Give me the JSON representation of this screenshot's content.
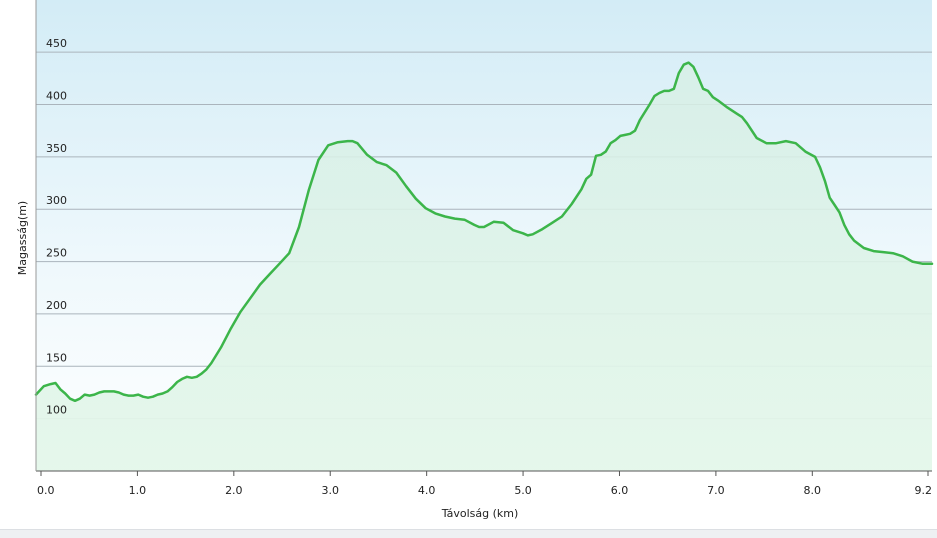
{
  "chart_data": {
    "type": "area",
    "xlabel": "Távolság  (km)",
    "ylabel": "Magasság(m)",
    "xlim": [
      0,
      9.2
    ],
    "ylim": [
      50,
      500
    ],
    "xticks": [
      0.0,
      1.0,
      2.0,
      3.0,
      4.0,
      5.0,
      6.0,
      7.0,
      8.0,
      9.2
    ],
    "xtick_labels": [
      "0.0",
      "1.0",
      "2.0",
      "3.0",
      "4.0",
      "5.0",
      "6.0",
      "7.0",
      "8.0",
      "9.2"
    ],
    "yticks": [
      100,
      150,
      200,
      250,
      300,
      350,
      400,
      450
    ],
    "ytick_labels": [
      "100",
      "150",
      "200",
      "250",
      "300",
      "350",
      "400",
      "450"
    ],
    "grid": true,
    "line_color": "#3cb54a",
    "fill_top_color": "#d6eaf4",
    "fill_bottom_color": "#e6f7ec",
    "series": [
      {
        "x": [
          0.0,
          0.08,
          0.15,
          0.2,
          0.25,
          0.3,
          0.35,
          0.4,
          0.45,
          0.5,
          0.55,
          0.6,
          0.65,
          0.7,
          0.75,
          0.8,
          0.85,
          0.9,
          0.95,
          1.0,
          1.05,
          1.1,
          1.15,
          1.2,
          1.25,
          1.3,
          1.35,
          1.4,
          1.45,
          1.5,
          1.55,
          1.6,
          1.65,
          1.7,
          1.75,
          1.8,
          1.9,
          2.0,
          2.1,
          2.2,
          2.3,
          2.4,
          2.5,
          2.6,
          2.7,
          2.8,
          2.9,
          3.0,
          3.1,
          3.2,
          3.25,
          3.3,
          3.4,
          3.5,
          3.6,
          3.7,
          3.8,
          3.9,
          4.0,
          4.1,
          4.2,
          4.3,
          4.4,
          4.5,
          4.55,
          4.6,
          4.7,
          4.8,
          4.9,
          5.0,
          5.05,
          5.1,
          5.2,
          5.3,
          5.4,
          5.5,
          5.6,
          5.65,
          5.7,
          5.75,
          5.8,
          5.85,
          5.9,
          5.95,
          6.0,
          6.05,
          6.1,
          6.15,
          6.2,
          6.3,
          6.35,
          6.4,
          6.45,
          6.5,
          6.55,
          6.6,
          6.65,
          6.7,
          6.75,
          6.8,
          6.85,
          6.9,
          6.95,
          7.0,
          7.1,
          7.2,
          7.25,
          7.3,
          7.4,
          7.5,
          7.6,
          7.7,
          7.8,
          7.9,
          8.0,
          8.05,
          8.1,
          8.15,
          8.2,
          8.25,
          8.3,
          8.35,
          8.4,
          8.5,
          8.6,
          8.7,
          8.8,
          8.9,
          9.0,
          9.1,
          9.2
        ],
        "y": [
          123,
          131,
          133,
          134,
          128,
          124,
          119,
          117,
          119,
          123,
          122,
          123,
          125,
          126,
          126,
          126,
          125,
          123,
          122,
          122,
          123,
          121,
          120,
          121,
          123,
          124,
          126,
          130,
          135,
          138,
          140,
          139,
          140,
          143,
          147,
          153,
          168,
          186,
          202,
          215,
          228,
          238,
          248,
          258,
          283,
          318,
          347,
          361,
          364,
          365,
          365,
          363,
          352,
          345,
          342,
          335,
          322,
          310,
          301,
          296,
          293,
          291,
          290,
          285,
          283,
          283,
          288,
          287,
          280,
          277,
          275,
          276,
          281,
          287,
          293,
          305,
          319,
          329,
          333,
          351,
          352,
          355,
          363,
          366,
          370,
          371,
          372,
          375,
          385,
          400,
          408,
          411,
          413,
          413,
          415,
          430,
          438,
          440,
          436,
          426,
          415,
          413,
          407,
          404,
          397,
          391,
          388,
          382,
          368,
          363,
          363,
          365,
          363,
          355,
          350,
          340,
          327,
          311,
          304,
          297,
          285,
          276,
          270,
          263,
          260,
          259,
          258,
          255,
          250,
          248,
          248
        ]
      }
    ]
  }
}
